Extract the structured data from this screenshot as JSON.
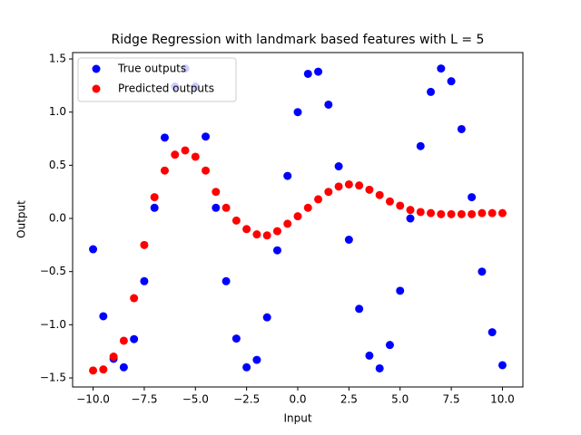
{
  "chart_data": {
    "type": "scatter",
    "title": "Ridge Regression with landmark based features with L = 5",
    "x_label": "Input",
    "y_label": "Output",
    "legend": "upper left",
    "xlim": [
      -11,
      11
    ],
    "ylim": [
      -1.585,
      1.56
    ],
    "xticks": [
      {
        "value": -10,
        "label": "−10.0"
      },
      {
        "value": -7.5,
        "label": "−7.5"
      },
      {
        "value": -5,
        "label": "−5.0"
      },
      {
        "value": -2.5,
        "label": "−2.5"
      },
      {
        "value": 0,
        "label": "0.0"
      },
      {
        "value": 2.5,
        "label": "2.5"
      },
      {
        "value": 5,
        "label": "5.0"
      },
      {
        "value": 7.5,
        "label": "7.5"
      },
      {
        "value": 10,
        "label": "10.0"
      }
    ],
    "yticks": [
      {
        "value": -1.5,
        "label": "−1.5"
      },
      {
        "value": -1,
        "label": "−1.0"
      },
      {
        "value": -0.5,
        "label": "−0.5"
      },
      {
        "value": 0,
        "label": "0.0"
      },
      {
        "value": 0.5,
        "label": "0.5"
      },
      {
        "value": 1,
        "label": "1.0"
      },
      {
        "value": 1.5,
        "label": "1.5"
      }
    ],
    "x": [
      -10,
      -9.5,
      -9,
      -8.5,
      -8,
      -7.5,
      -7,
      -6.5,
      -6,
      -5.5,
      -5,
      -4.5,
      -4,
      -3.5,
      -3,
      -2.5,
      -2,
      -1.5,
      -1,
      -0.5,
      0,
      0.5,
      1,
      1.5,
      2,
      2.5,
      3,
      3.5,
      4,
      4.5,
      5,
      5.5,
      6,
      6.5,
      7,
      7.5,
      8,
      8.5,
      9,
      9.5,
      10
    ],
    "series": [
      {
        "name": "True outputs",
        "color": "#0000ff",
        "values": [
          -0.29,
          -0.92,
          -1.32,
          -1.4,
          -1.135,
          -0.59,
          0.1,
          0.76,
          1.24,
          1.41,
          1.24,
          0.77,
          0.1,
          -0.59,
          -1.13,
          -1.4,
          -1.33,
          -0.93,
          -0.3,
          0.4,
          1.0,
          1.36,
          1.38,
          1.07,
          0.49,
          -0.2,
          -0.85,
          -1.29,
          -1.41,
          -1.19,
          -0.68,
          0.0,
          0.68,
          1.19,
          1.41,
          1.29,
          0.84,
          0.2,
          -0.5,
          -1.07,
          -1.38
        ]
      },
      {
        "name": "Predicted outputs",
        "color": "#ff0000",
        "values": [
          -1.43,
          -1.42,
          -1.3,
          -1.15,
          -0.75,
          -0.25,
          0.2,
          0.45,
          0.6,
          0.64,
          0.58,
          0.45,
          0.25,
          0.1,
          -0.02,
          -0.1,
          -0.15,
          -0.16,
          -0.12,
          -0.05,
          0.02,
          0.1,
          0.18,
          0.25,
          0.3,
          0.32,
          0.31,
          0.27,
          0.22,
          0.16,
          0.12,
          0.08,
          0.06,
          0.05,
          0.04,
          0.04,
          0.04,
          0.04,
          0.05,
          0.05,
          0.05
        ]
      }
    ]
  }
}
